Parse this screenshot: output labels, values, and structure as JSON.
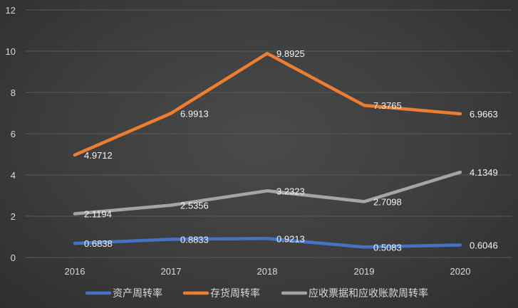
{
  "chart_data": {
    "type": "line",
    "title": "",
    "xlabel": "",
    "ylabel": "",
    "categories": [
      "2016",
      "2017",
      "2018",
      "2019",
      "2020"
    ],
    "ylim": [
      0,
      12
    ],
    "yticks": [
      0,
      2,
      4,
      6,
      8,
      10,
      12
    ],
    "grid": true,
    "legend_position": "bottom",
    "series": [
      {
        "name": "资产周转率",
        "color": "#4472c4",
        "values": [
          0.6838,
          0.8833,
          0.9213,
          0.5083,
          0.6046
        ],
        "labels": [
          "0.6838",
          "0.8833",
          "0.9213",
          "0.5083",
          "0.6046"
        ]
      },
      {
        "name": "存货周转率",
        "color": "#ed7d31",
        "values": [
          4.9712,
          6.9913,
          9.8925,
          7.3765,
          6.9663
        ],
        "labels": [
          "4.9712",
          "6.9913",
          "9.8925",
          "7.3765",
          "6.9663"
        ]
      },
      {
        "name": "应收票据和应收账款周转率",
        "color": "#a5a5a5",
        "values": [
          2.1194,
          2.5356,
          3.2323,
          2.7098,
          4.1349
        ],
        "labels": [
          "2.1194",
          "2.5356",
          "3.2323",
          "2.7098",
          "4.1349"
        ]
      }
    ]
  }
}
